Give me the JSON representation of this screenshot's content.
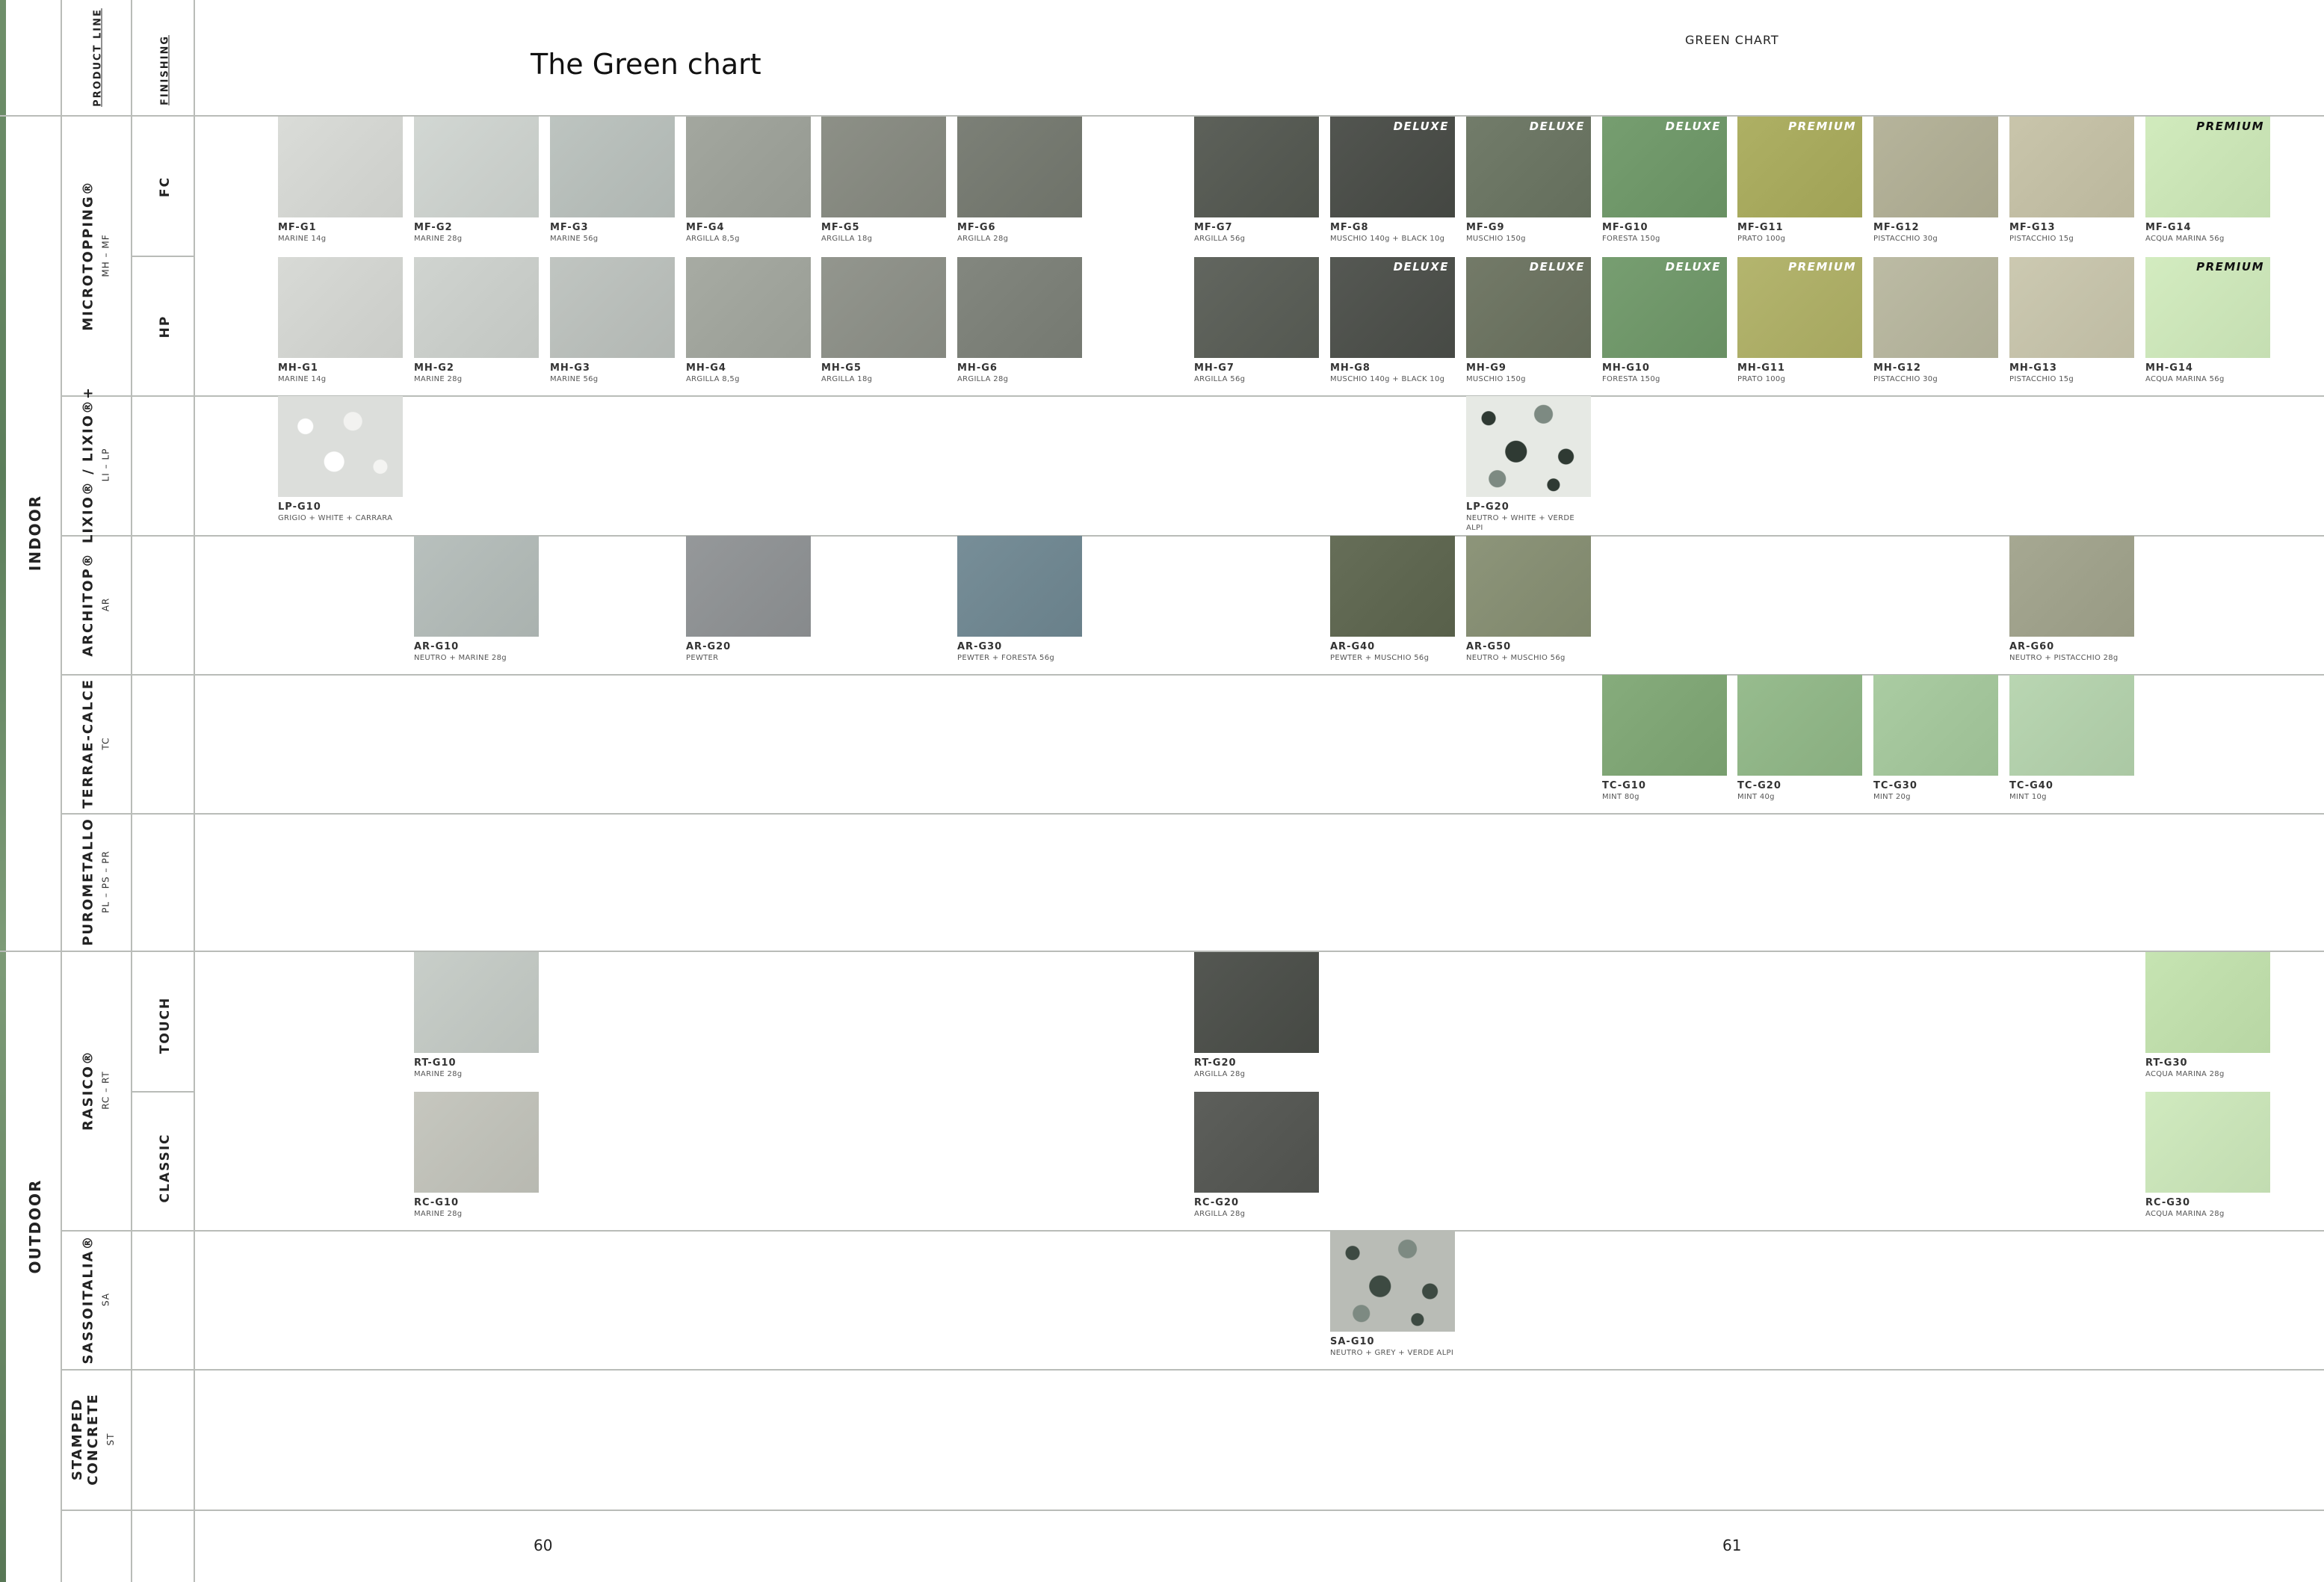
{
  "header": {
    "product_line": "PRODUCT LINE",
    "finishing": "FINISHING",
    "title": "The Green chart",
    "chart_label": "GREEN CHART"
  },
  "sections": {
    "indoor": "INDOOR",
    "outdoor": "OUTDOOR"
  },
  "products": {
    "microtopping": {
      "name": "MICROTOPPING®",
      "code": "MH – MF"
    },
    "lixio": {
      "name": "LIXIO® / LIXIO®+",
      "code": "LI – LP"
    },
    "architop": {
      "name": "ARCHITOP®",
      "code": "AR"
    },
    "terrae": {
      "name": "TERRAE-CALCE",
      "code": "TC"
    },
    "purometallo": {
      "name": "PUROMETALLO",
      "code": "PL – PS – PR"
    },
    "rasico": {
      "name": "RASICO®",
      "code": "RC – RT"
    },
    "sassoitalia": {
      "name": "SASSOITALIA®",
      "code": "SA"
    },
    "stamped1": "STAMPED",
    "stamped2": "CONCRETE",
    "stamped_code": "ST"
  },
  "finishings": {
    "fc": "FC",
    "hp": "HP",
    "touch": "TOUCH",
    "classic": "CLASSIC"
  },
  "swatches": [
    {
      "code": "MF-G1",
      "desc": "MARINE 14g",
      "badge": "",
      "color": "#d2d4d0",
      "icon": "swatch-texture"
    },
    {
      "code": "MF-G2",
      "desc": "MARINE 28g",
      "badge": "",
      "color": "#cacfcb",
      "icon": "swatch-texture"
    },
    {
      "code": "MF-G3",
      "desc": "MARINE 56g",
      "badge": "",
      "color": "#b5bcb8",
      "icon": "swatch-texture"
    },
    {
      "code": "MF-G4",
      "desc": "ARGILLA 8,5g",
      "badge": "",
      "color": "#9b9f97",
      "icon": "swatch-texture"
    },
    {
      "code": "MF-G5",
      "desc": "ARGILLA 18g",
      "badge": "",
      "color": "#85887f",
      "icon": "swatch-texture"
    },
    {
      "code": "MF-G6",
      "desc": "ARGILLA 28g",
      "badge": "",
      "color": "#74786f",
      "icon": "swatch-texture"
    },
    {
      "code": "MF-G7",
      "desc": "ARGILLA 56g",
      "badge": "",
      "color": "#555952",
      "icon": "swatch-texture"
    },
    {
      "code": "MF-G8",
      "desc": "MUSCHIO 140g + BLACK 10g",
      "badge": "DELUXE",
      "color": "#4a4d48",
      "icon": "swatch-texture"
    },
    {
      "code": "MF-G9",
      "desc": "MUSCHIO 150g",
      "badge": "DELUXE",
      "color": "#6a7462",
      "icon": "swatch-texture"
    },
    {
      "code": "MF-G10",
      "desc": "FORESTA 150g",
      "badge": "DELUXE",
      "color": "#6e9668",
      "icon": "swatch-texture"
    },
    {
      "code": "MF-G11",
      "desc": "PRATO 100g",
      "badge": "PREMIUM",
      "color": "#a6a85c",
      "icon": "swatch-texture"
    },
    {
      "code": "MF-G12",
      "desc": "PISTACCHIO 30g",
      "badge": "",
      "color": "#aeac93",
      "icon": "swatch-texture"
    },
    {
      "code": "MF-G13",
      "desc": "PISTACCHIO 15g",
      "badge": "",
      "color": "#c1bda3",
      "icon": "swatch-texture"
    },
    {
      "code": "MF-G14",
      "desc": "ACQUA MARINA 56g",
      "badge": "PREMIUM",
      "color": "#c9e3b5",
      "icon": "swatch-texture"
    },
    {
      "code": "MH-G1",
      "desc": "MARINE 14g",
      "badge": "",
      "color": "#d0d2ce",
      "icon": "swatch-texture"
    },
    {
      "code": "MH-G2",
      "desc": "MARINE 28g",
      "badge": "",
      "color": "#c8ccc8",
      "icon": "swatch-texture"
    },
    {
      "code": "MH-G3",
      "desc": "MARINE 56g",
      "badge": "",
      "color": "#b8bdb9",
      "icon": "swatch-texture"
    },
    {
      "code": "MH-G4",
      "desc": "ARGILLA 8,5g",
      "badge": "",
      "color": "#9fa39b",
      "icon": "swatch-texture"
    },
    {
      "code": "MH-G5",
      "desc": "ARGILLA 18g",
      "badge": "",
      "color": "#8b8e86",
      "icon": "swatch-texture"
    },
    {
      "code": "MH-G6",
      "desc": "ARGILLA 28g",
      "badge": "",
      "color": "#7b7f77",
      "icon": "swatch-texture"
    },
    {
      "code": "MH-G7",
      "desc": "ARGILLA 56g",
      "badge": "",
      "color": "#5a5e57",
      "icon": "swatch-texture"
    },
    {
      "code": "MH-G8",
      "desc": "MUSCHIO 140g + BLACK 10g",
      "badge": "DELUXE",
      "color": "#4d504b",
      "icon": "swatch-texture"
    },
    {
      "code": "MH-G9",
      "desc": "MUSCHIO 150g",
      "badge": "DELUXE",
      "color": "#6b7260",
      "icon": "swatch-texture"
    },
    {
      "code": "MH-G10",
      "desc": "FORESTA 150g",
      "badge": "DELUXE",
      "color": "#6f9669",
      "icon": "swatch-texture"
    },
    {
      "code": "MH-G11",
      "desc": "PRATO 100g",
      "badge": "PREMIUM",
      "color": "#acad66",
      "icon": "swatch-texture"
    },
    {
      "code": "MH-G12",
      "desc": "PISTACCHIO 30g",
      "badge": "",
      "color": "#b4b39c",
      "icon": "swatch-texture"
    },
    {
      "code": "MH-G13",
      "desc": "PISTACCHIO 15g",
      "badge": "",
      "color": "#c4c1a9",
      "icon": "swatch-texture"
    },
    {
      "code": "MH-G14",
      "desc": "ACQUA MARINA 56g",
      "badge": "PREMIUM",
      "color": "#cbe4b8",
      "icon": "swatch-texture"
    },
    {
      "code": "LP-G10",
      "desc": "GRIGIO + WHITE + CARRARA",
      "badge": "",
      "color": "#dcdedb",
      "icon": "terrazzo-texture"
    },
    {
      "code": "LP-G20",
      "desc": "NEUTRO + WHITE + VERDE ALPI",
      "badge": "",
      "color": "#e6e9e4",
      "icon": "terrazzo-texture"
    },
    {
      "code": "AR-G10",
      "desc": "NEUTRO + MARINE 28g",
      "badge": "",
      "color": "#b0b8b5",
      "icon": "swatch-texture"
    },
    {
      "code": "AR-G20",
      "desc": "PEWTER",
      "badge": "",
      "color": "#8d9092",
      "icon": "swatch-texture"
    },
    {
      "code": "AR-G30",
      "desc": "PEWTER + FORESTA 56g",
      "badge": "",
      "color": "#6f8690",
      "icon": "swatch-texture"
    },
    {
      "code": "AR-G40",
      "desc": "PEWTER + MUSCHIO 56g",
      "badge": "",
      "color": "#5e6650",
      "icon": "swatch-texture"
    },
    {
      "code": "AR-G50",
      "desc": "NEUTRO + MUSCHIO 56g",
      "badge": "",
      "color": "#858d72",
      "icon": "swatch-texture"
    },
    {
      "code": "AR-G60",
      "desc": "NEUTRO + PISTACCHIO 28g",
      "badge": "",
      "color": "#9ea08a",
      "icon": "swatch-texture"
    },
    {
      "code": "TC-G10",
      "desc": "MINT 80g",
      "badge": "",
      "color": "#7ea474",
      "icon": "swatch-texture"
    },
    {
      "code": "TC-G20",
      "desc": "MINT 40g",
      "badge": "",
      "color": "#8fb486",
      "icon": "swatch-texture"
    },
    {
      "code": "TC-G30",
      "desc": "MINT 20g",
      "badge": "",
      "color": "#a2c49a",
      "icon": "swatch-texture"
    },
    {
      "code": "TC-G40",
      "desc": "MINT 10g",
      "badge": "",
      "color": "#b1ceaa",
      "icon": "swatch-texture"
    },
    {
      "code": "RT-G10",
      "desc": "MARINE 28g",
      "badge": "",
      "color": "#c0c6c1",
      "icon": "swatch-texture"
    },
    {
      "code": "RT-G20",
      "desc": "ARGILLA 28g",
      "badge": "",
      "color": "#4c4f4a",
      "icon": "swatch-texture"
    },
    {
      "code": "RT-G30",
      "desc": "ACQUA MARINA 28g",
      "badge": "",
      "color": "#bedcaa",
      "icon": "swatch-texture"
    },
    {
      "code": "RC-G10",
      "desc": "MARINE 28g",
      "badge": "",
      "color": "#bebfb7",
      "icon": "swatch-texture"
    },
    {
      "code": "RC-G20",
      "desc": "ARGILLA 28g",
      "badge": "",
      "color": "#555753",
      "icon": "swatch-texture"
    },
    {
      "code": "RC-G30",
      "desc": "ACQUA MARINA 28g",
      "badge": "",
      "color": "#c8e2b7",
      "icon": "swatch-texture"
    },
    {
      "code": "SA-G10",
      "desc": "NEUTRO + GREY + VERDE ALPI",
      "badge": "",
      "color": "#b9bcb6",
      "icon": "stone-texture"
    }
  ],
  "footer": {
    "page_left": "60",
    "page_right": "61"
  }
}
